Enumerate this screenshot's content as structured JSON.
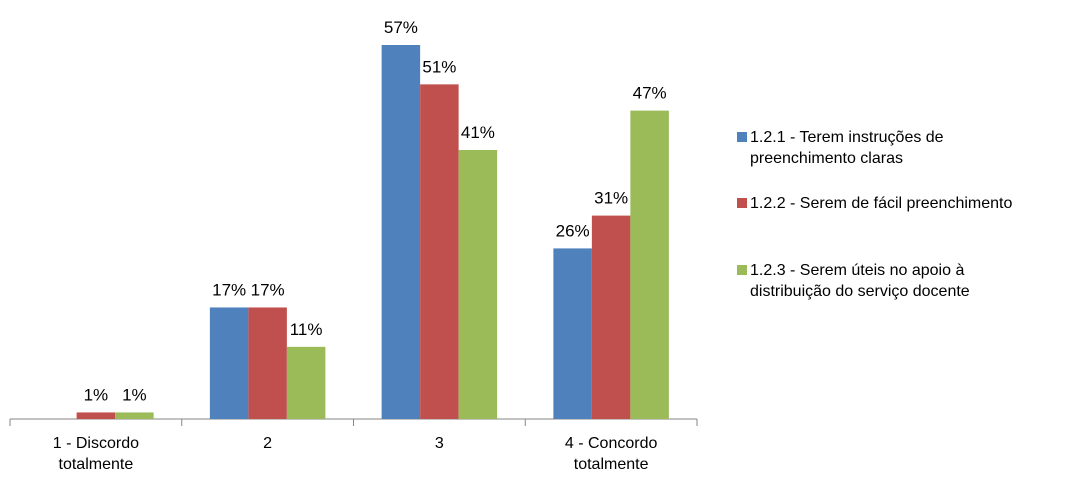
{
  "chart_data": {
    "type": "bar",
    "categories": [
      "1 - Discordo totalmente",
      "2",
      "3",
      "4 - Concordo totalmente"
    ],
    "series": [
      {
        "name": "1.2.1 - Terem instruções de preenchimento claras",
        "color": "#4f81bd",
        "values": [
          null,
          17,
          57,
          26
        ],
        "value_labels": [
          null,
          "17%",
          "57%",
          "26%"
        ]
      },
      {
        "name": "1.2.2 - Serem de fácil preenchimento",
        "color": "#c0504d",
        "values": [
          1,
          17,
          51,
          31
        ],
        "value_labels": [
          "1%",
          "17%",
          "51%",
          "31%"
        ]
      },
      {
        "name": "1.2.3 - Serem úteis no apoio à distribuição do serviço docente",
        "color": "#9bbb59",
        "values": [
          1,
          11,
          41,
          47
        ],
        "value_labels": [
          "1%",
          "11%",
          "41%",
          "47%"
        ]
      }
    ],
    "legend": "right"
  }
}
